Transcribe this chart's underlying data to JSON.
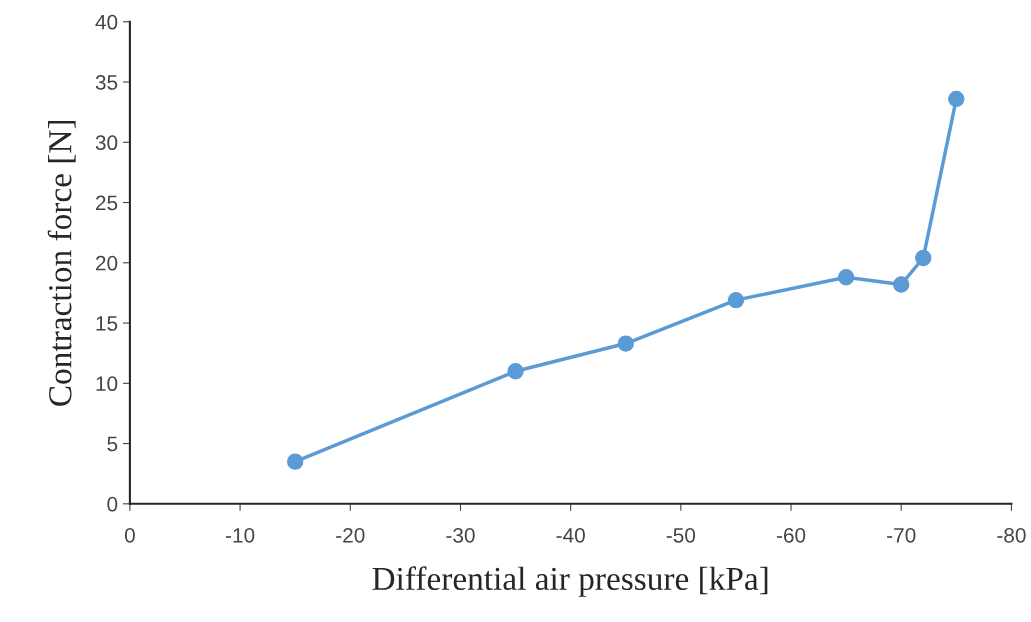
{
  "chart_data": {
    "type": "line",
    "xlabel": "Differential air pressure [kPa]",
    "ylabel": "Contraction force [N]",
    "x": [
      -15,
      -35,
      -45,
      -55,
      -65,
      -70,
      -72,
      -75
    ],
    "series": [
      {
        "color": "#5b9bd5",
        "values": [
          3.5,
          11.0,
          13.3,
          16.9,
          18.8,
          18.2,
          20.4,
          33.6
        ]
      }
    ],
    "xlim": [
      0,
      -80
    ],
    "xticks": [
      0,
      -10,
      -20,
      -30,
      -40,
      -50,
      -60,
      -70,
      -80
    ],
    "ylim": [
      0,
      40
    ],
    "yticks": [
      0,
      5,
      10,
      15,
      20,
      25,
      30,
      35,
      40
    ],
    "marker": "circle",
    "line_style": "solid",
    "grid": false,
    "legend": false
  }
}
